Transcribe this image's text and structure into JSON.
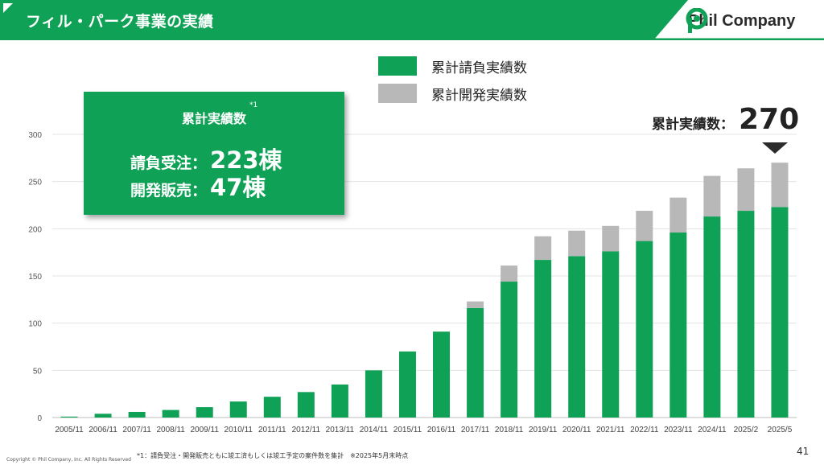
{
  "header": {
    "title": "フィル・パーク事業の実績"
  },
  "logo": {
    "name": "Phil Company"
  },
  "colors": {
    "accent": "#0fa256",
    "developed": "#b8b8b8",
    "header": "#0fa256"
  },
  "legend": [
    {
      "label": "累計請負実績数",
      "color": "#0fa256"
    },
    {
      "label": "累計開発実績数",
      "color": "#b8b8b8"
    }
  ],
  "summary": {
    "title": "累計実績数",
    "note": "*1",
    "contract_label": "請負受注：",
    "contract_value": "223棟",
    "develop_label": "開発販売：",
    "develop_value": "47棟"
  },
  "total": {
    "label": "累計実績数：",
    "value": "270"
  },
  "chart_data": {
    "type": "bar",
    "stacked": true,
    "categories": [
      "2005/11",
      "2006/11",
      "2007/11",
      "2008/11",
      "2009/11",
      "2010/11",
      "2011/11",
      "2012/11",
      "2013/11",
      "2014/11",
      "2015/11",
      "2016/11",
      "2017/11",
      "2018/11",
      "2019/11",
      "2020/11",
      "2021/11",
      "2022/11",
      "2023/11",
      "2024/11",
      "2025/2",
      "2025/5"
    ],
    "series": [
      {
        "name": "累計請負実績数",
        "color": "#0fa256",
        "values": [
          1,
          4,
          6,
          8,
          11,
          17,
          22,
          27,
          35,
          50,
          70,
          91,
          116,
          144,
          167,
          171,
          176,
          187,
          196,
          213,
          219,
          223
        ]
      },
      {
        "name": "累計開発実績数",
        "color": "#b8b8b8",
        "values": [
          0,
          0,
          0,
          0,
          0,
          0,
          0,
          0,
          0,
          0,
          0,
          0,
          7,
          17,
          25,
          27,
          27,
          32,
          37,
          43,
          45,
          47
        ]
      }
    ],
    "yticks": [
      0,
      50,
      100,
      150,
      200,
      250,
      300
    ],
    "ylim": [
      0,
      300
    ],
    "grid": true,
    "legend_position": "top"
  },
  "footnote": "*1：請負受注・開発販売ともに竣工済もしくは竣工予定の案件数を集計　※2025年5月末時点",
  "copyright": "Copyright © Phil Company, Inc.  All Rights Reserved",
  "page_number": "41"
}
